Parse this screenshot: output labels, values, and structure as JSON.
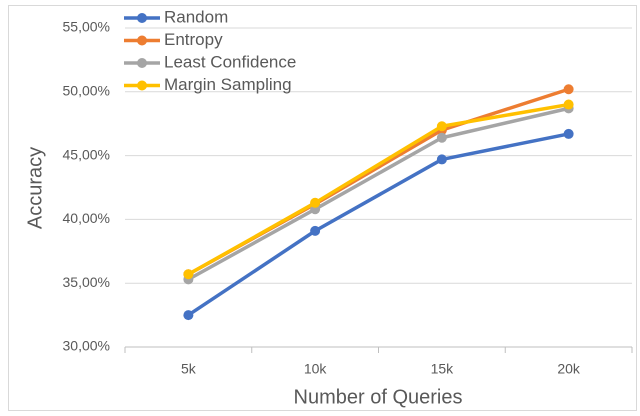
{
  "chart_data": {
    "type": "line",
    "x_label": "Number of Queries",
    "y_label": "Accuracy",
    "categories": [
      "5k",
      "10k",
      "15k",
      "20k"
    ],
    "series": [
      {
        "name": "Random",
        "color": "#4472c4",
        "values": [
          32.5,
          39.1,
          44.7,
          46.7
        ]
      },
      {
        "name": "Entropy",
        "color": "#ed7d31",
        "values": [
          35.7,
          41.2,
          47.0,
          50.2
        ]
      },
      {
        "name": "Least Confidence",
        "color": "#a5a5a5",
        "values": [
          35.3,
          40.8,
          46.4,
          48.7
        ]
      },
      {
        "name": "Margin Sampling",
        "color": "#ffc000",
        "values": [
          35.7,
          41.3,
          47.3,
          49.0
        ]
      }
    ],
    "ylim": [
      30,
      55
    ],
    "yticks": [
      {
        "value": 30,
        "label": "30,00%"
      },
      {
        "value": 35,
        "label": "35,00%"
      },
      {
        "value": 40,
        "label": "40,00%"
      },
      {
        "value": 45,
        "label": "45,00%"
      },
      {
        "value": 50,
        "label": "50,00%"
      },
      {
        "value": 55,
        "label": "55,00%"
      }
    ],
    "grid": true,
    "legend": "top-left"
  }
}
